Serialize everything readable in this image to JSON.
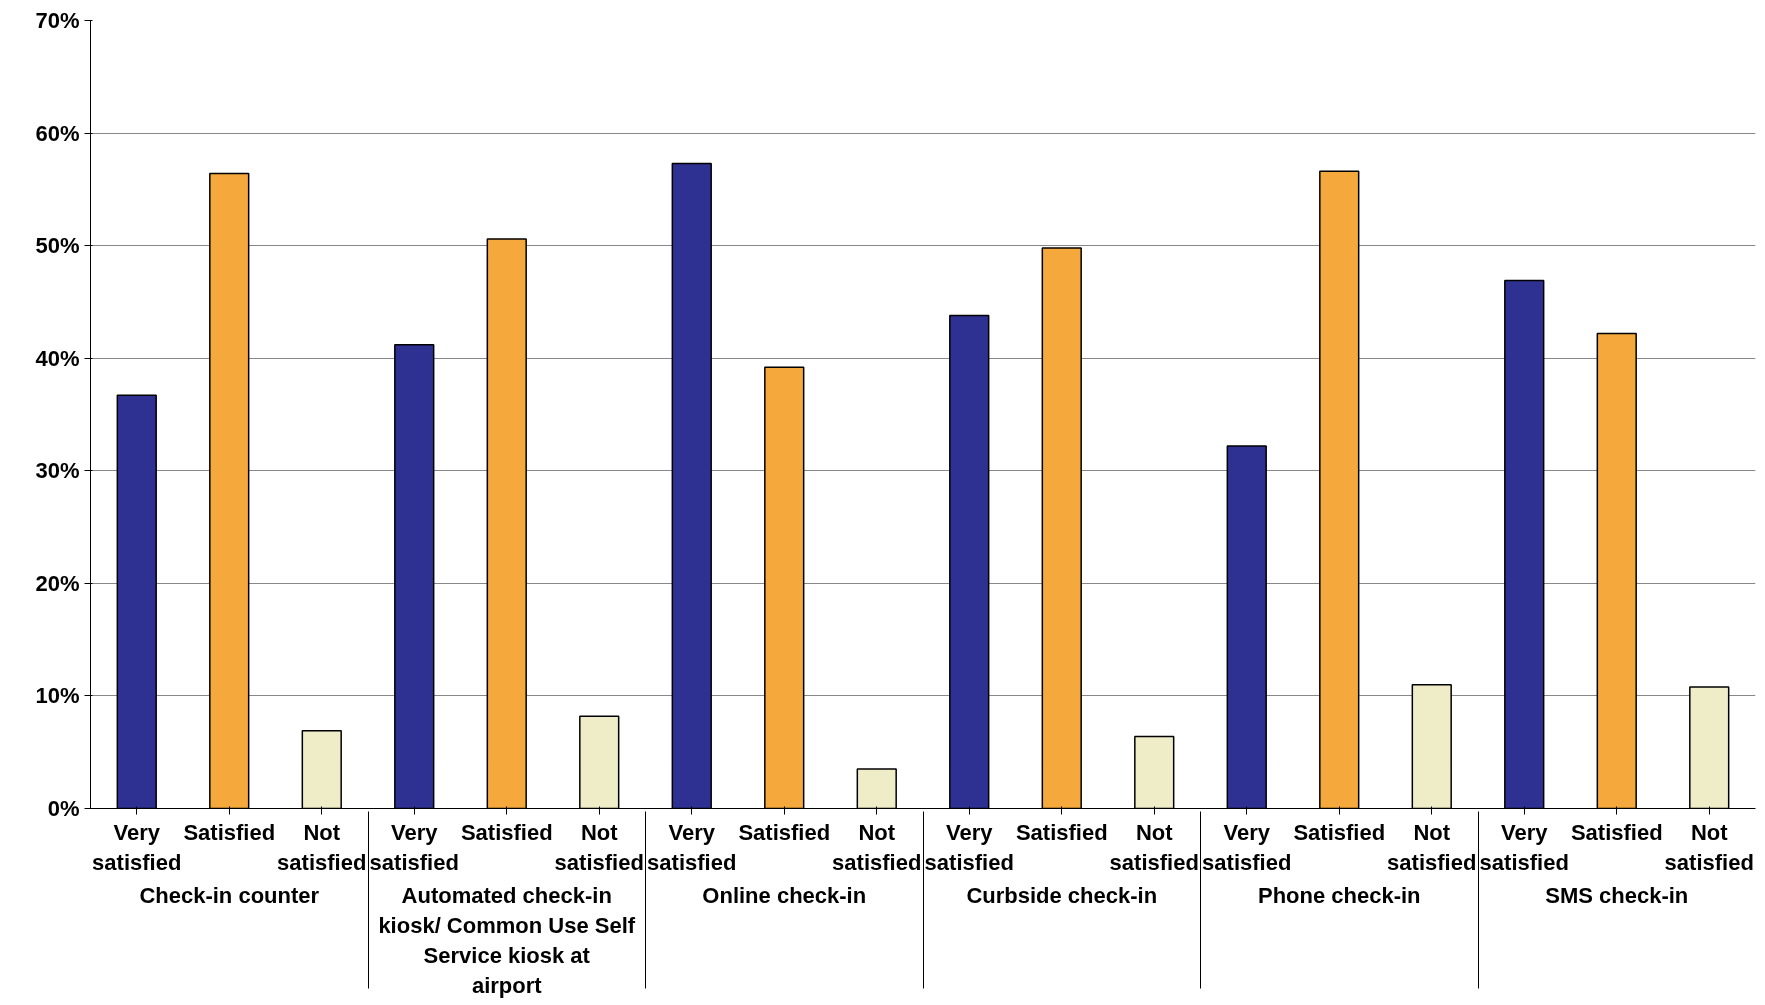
{
  "chart_data": {
    "type": "bar",
    "categories": [
      "Very satisfied",
      "Satisfied",
      "Not satisfied",
      "Very satisfied",
      "Satisfied",
      "Not satisfied",
      "Very satisfied",
      "Satisfied",
      "Not satisfied",
      "Very satisfied",
      "Satisfied",
      "Not satisfied",
      "Very satisfied",
      "Satisfied",
      "Not satisfied",
      "Very satisfied",
      "Satisfied",
      "Not satisfied"
    ],
    "values": [
      36.7,
      56.4,
      6.9,
      41.2,
      50.6,
      8.2,
      57.3,
      39.2,
      3.5,
      43.8,
      49.8,
      6.4,
      32.2,
      56.6,
      11.0,
      46.9,
      42.2,
      10.8
    ],
    "colors": [
      "#2e3192",
      "#f5a83c",
      "#eeedc8",
      "#2e3192",
      "#f5a83c",
      "#eeedc8",
      "#2e3192",
      "#f5a83c",
      "#eeedc8",
      "#2e3192",
      "#f5a83c",
      "#eeedc8",
      "#2e3192",
      "#f5a83c",
      "#eeedc8",
      "#2e3192",
      "#f5a83c",
      "#eeedc8"
    ],
    "annotations": [
      "Check-in counter",
      "Automated check-in kiosk/ Common Use Self Service kiosk at airport",
      "Online check-in",
      "Curbside check-in",
      "Phone check-in",
      "SMS check-in"
    ],
    "ylim": [
      0,
      70
    ],
    "yticks": [
      {
        "value": 0,
        "label": "0%"
      },
      {
        "value": 10,
        "label": "10%"
      },
      {
        "value": 20,
        "label": "20%"
      },
      {
        "value": 30,
        "label": "30%"
      },
      {
        "value": 40,
        "label": "40%"
      },
      {
        "value": 50,
        "label": "50%"
      },
      {
        "value": 60,
        "label": "60%"
      },
      {
        "value": 70,
        "label": "70%"
      }
    ],
    "grid": "y"
  }
}
